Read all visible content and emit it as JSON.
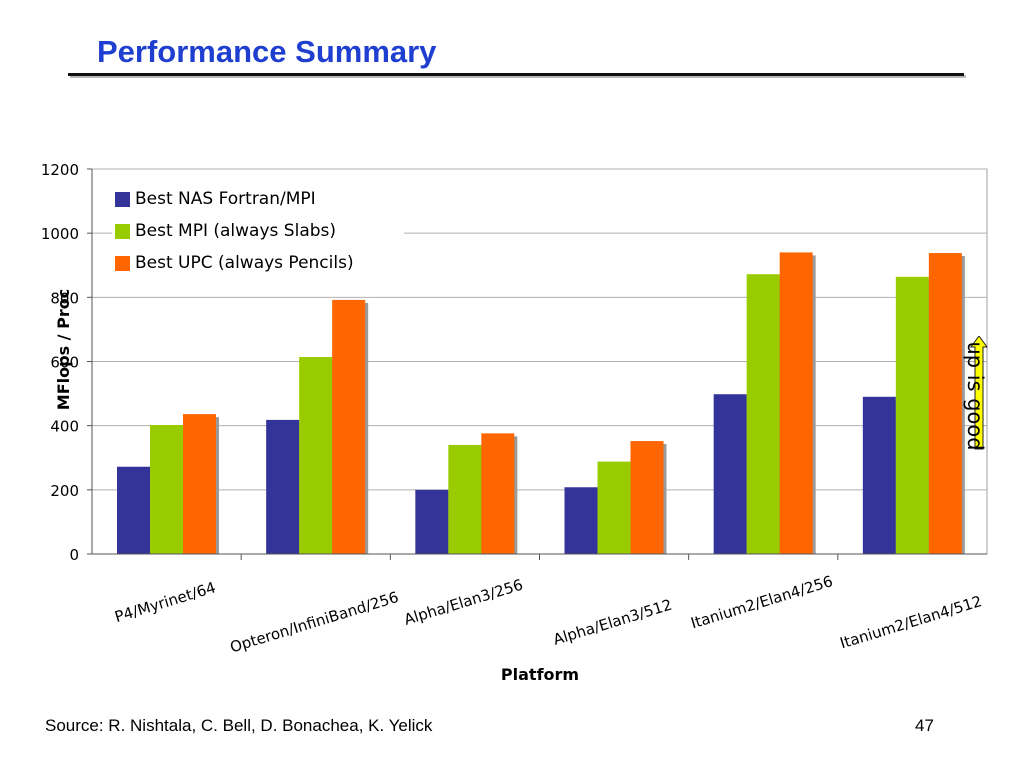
{
  "slide": {
    "title": "Performance Summary",
    "source": "Source:  R. Nishtala, C. Bell, D. Bonachea, K. Yelick",
    "page_number": "47"
  },
  "annotation": {
    "text": "up is good",
    "arrow_color": "#ffff00",
    "icon": "up-arrow-icon"
  },
  "chart_data": {
    "type": "bar",
    "title": "",
    "xlabel": "Platform",
    "ylabel": "MFlops / Proc",
    "ylim": [
      0,
      1200
    ],
    "yticks": [
      "0",
      "200",
      "400",
      "600",
      "800",
      "1000",
      "1200"
    ],
    "grid": true,
    "legend_position": "top-left",
    "categories": [
      "P4/Myrinet/64",
      "Opteron/InfiniBand/256",
      "Alpha/Elan3/256",
      "Alpha/Elan3/512",
      "Itanium2/Elan4/256",
      "Itanium2/Elan4/512"
    ],
    "series": [
      {
        "name": "Best NAS Fortran/MPI",
        "color": "#333399",
        "values": [
          272,
          418,
          200,
          208,
          498,
          490
        ]
      },
      {
        "name": "Best MPI (always Slabs)",
        "color": "#99cc00",
        "values": [
          402,
          614,
          340,
          288,
          872,
          864
        ]
      },
      {
        "name": "Best UPC (always Pencils)",
        "color": "#ff6600",
        "values": [
          436,
          792,
          376,
          352,
          940,
          938
        ]
      }
    ]
  }
}
